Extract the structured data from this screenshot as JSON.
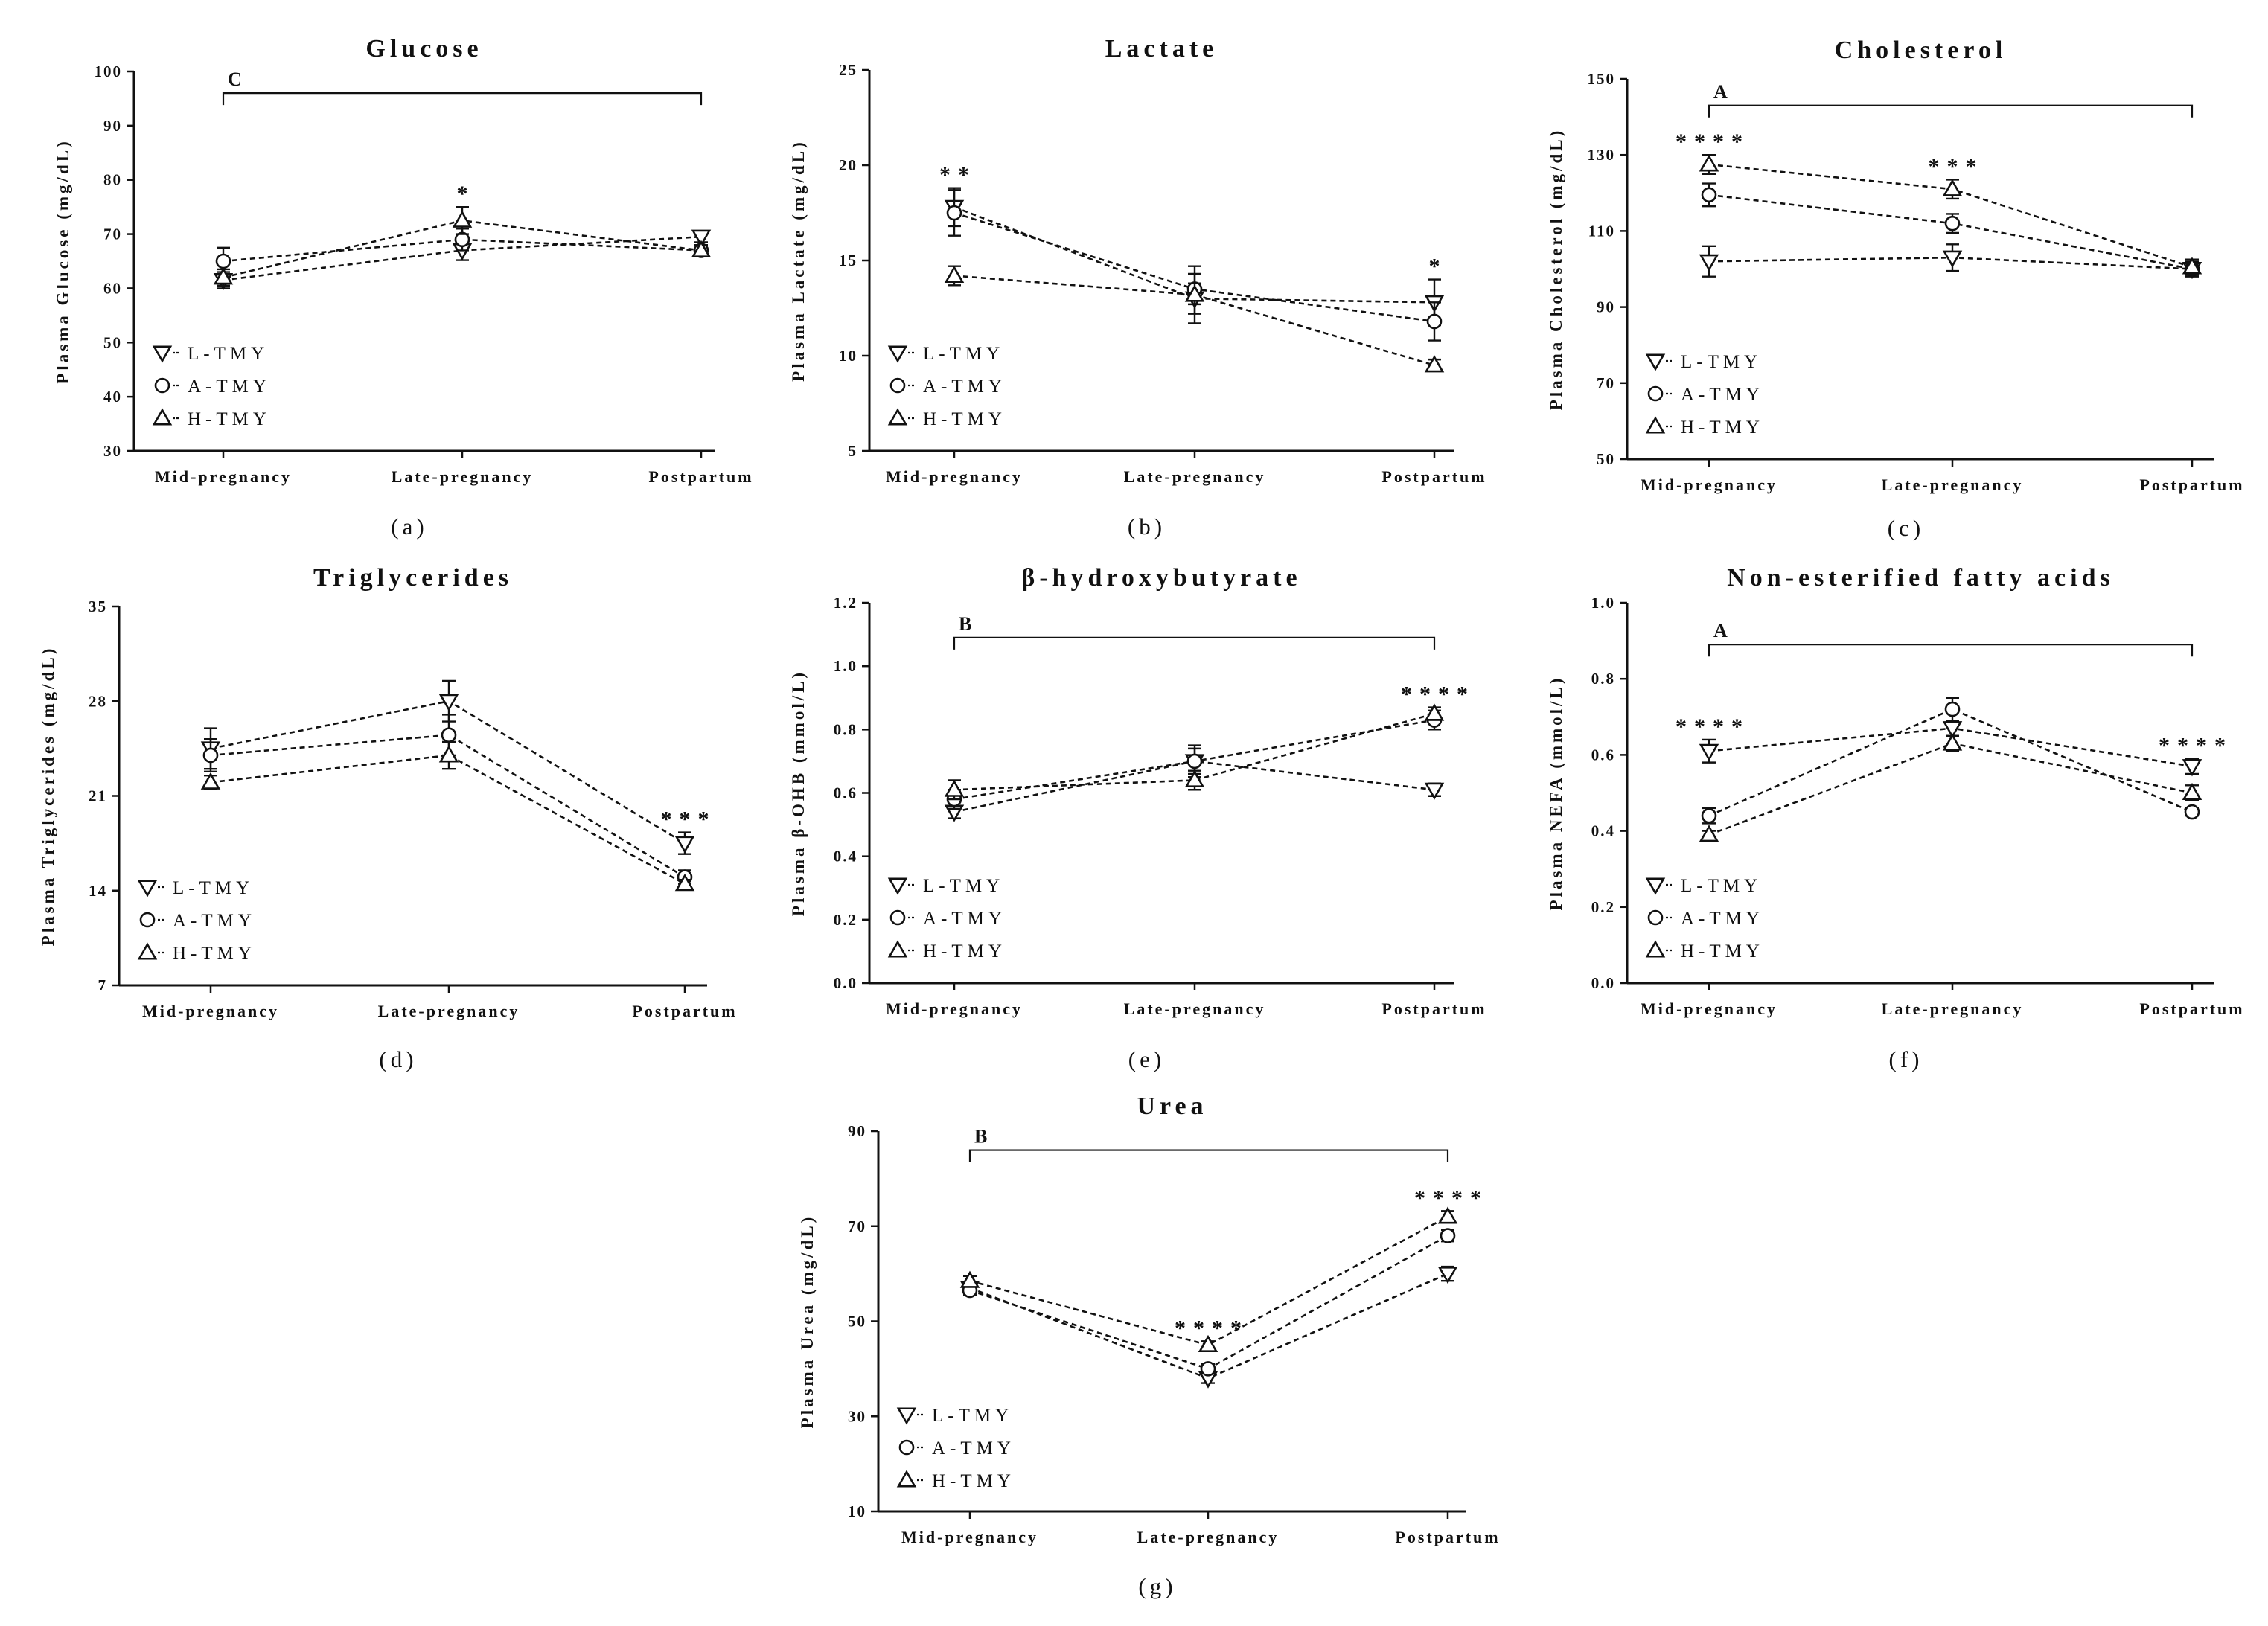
{
  "legend": [
    "L-TMY",
    "A-TMY",
    "H-TMY"
  ],
  "categories": [
    "Mid-pregnancy",
    "Late-pregnancy",
    "Postpartum"
  ],
  "chart_data": [
    {
      "type": "line",
      "panel": "(a)",
      "title": "Glucose",
      "ylabel": "Plasma Glucose (mg/dL)",
      "ylim": [
        30,
        100
      ],
      "yticks": [
        30,
        40,
        50,
        60,
        70,
        80,
        90,
        100
      ],
      "categories": [
        "Mid-pregnancy",
        "Late-pregnancy",
        "Postpartum"
      ],
      "series": [
        {
          "name": "L-TMY",
          "values": [
            61.5,
            67.0,
            69.5
          ],
          "err": [
            1.5,
            1.8,
            1.0
          ]
        },
        {
          "name": "A-TMY",
          "values": [
            65.0,
            69.0,
            67.0
          ],
          "err": [
            2.5,
            2.0,
            1.0
          ]
        },
        {
          "name": "H-TMY",
          "values": [
            62.0,
            72.5,
            67.0
          ],
          "err": [
            1.5,
            2.5,
            1.0
          ]
        }
      ],
      "significance": [
        {
          "category": "Late-pregnancy",
          "label": "*"
        }
      ],
      "bracket": {
        "label": "C",
        "from": "Mid-pregnancy",
        "to": "Postpartum",
        "y": 96
      }
    },
    {
      "type": "line",
      "panel": "(b)",
      "title": "Lactate",
      "ylabel": "Plasma Lactate (mg/dL)",
      "ylim": [
        5,
        25
      ],
      "yticks": [
        5,
        10,
        15,
        20,
        25
      ],
      "categories": [
        "Mid-pregnancy",
        "Late-pregnancy",
        "Postpartum"
      ],
      "series": [
        {
          "name": "L-TMY",
          "values": [
            17.8,
            13.0,
            12.8
          ],
          "err": [
            1.0,
            0.8,
            1.2
          ]
        },
        {
          "name": "A-TMY",
          "values": [
            17.5,
            13.5,
            11.8
          ],
          "err": [
            1.2,
            0.8,
            1.0
          ]
        },
        {
          "name": "H-TMY",
          "values": [
            14.2,
            13.2,
            9.5
          ],
          "err": [
            0.5,
            1.5,
            0.3
          ]
        }
      ],
      "significance": [
        {
          "category": "Mid-pregnancy",
          "label": "**"
        },
        {
          "category": "Postpartum",
          "label": "*"
        }
      ]
    },
    {
      "type": "line",
      "panel": "(c)",
      "title": "Cholesterol",
      "ylabel": "Plasma Cholesterol (mg/dL)",
      "ylim": [
        50,
        150
      ],
      "yticks": [
        50,
        70,
        90,
        110,
        130,
        150
      ],
      "categories": [
        "Mid-pregnancy",
        "Late-pregnancy",
        "Postpartum"
      ],
      "series": [
        {
          "name": "L-TMY",
          "values": [
            102.0,
            103.0,
            100.0
          ],
          "err": [
            4.0,
            3.5,
            2.0
          ]
        },
        {
          "name": "A-TMY",
          "values": [
            119.5,
            112.0,
            100.0
          ],
          "err": [
            3.0,
            2.5,
            1.5
          ]
        },
        {
          "name": "H-TMY",
          "values": [
            127.5,
            121.0,
            100.5
          ],
          "err": [
            2.5,
            2.5,
            2.0
          ]
        }
      ],
      "significance": [
        {
          "category": "Mid-pregnancy",
          "label": "****"
        },
        {
          "category": "Late-pregnancy",
          "label": "***"
        }
      ],
      "bracket": {
        "label": "A",
        "from": "Mid-pregnancy",
        "to": "Postpartum",
        "y": 143
      }
    },
    {
      "type": "line",
      "panel": "(d)",
      "title": "Triglycerides",
      "ylabel": "Plasma Triglycerides (mg/dL)",
      "ylim": [
        7,
        35
      ],
      "yticks": [
        7,
        14,
        21,
        28,
        35
      ],
      "categories": [
        "Mid-pregnancy",
        "Late-pregnancy",
        "Postpartum"
      ],
      "series": [
        {
          "name": "L-TMY",
          "values": [
            24.5,
            28.0,
            17.5
          ],
          "err": [
            1.5,
            1.5,
            0.8
          ]
        },
        {
          "name": "A-TMY",
          "values": [
            24.0,
            25.5,
            15.0
          ],
          "err": [
            1.2,
            1.5,
            0.5
          ]
        },
        {
          "name": "H-TMY",
          "values": [
            22.0,
            24.0,
            14.5
          ],
          "err": [
            0.5,
            1.0,
            0.3
          ]
        }
      ],
      "significance": [
        {
          "category": "Postpartum",
          "label": "***"
        }
      ]
    },
    {
      "type": "line",
      "panel": "(e)",
      "title": "β-hydroxybutyrate",
      "ylabel": "Plasma β-OHB (mmol/L)",
      "ylim": [
        0.0,
        1.2
      ],
      "yticks": [
        0.0,
        0.2,
        0.4,
        0.6,
        0.8,
        1.0,
        1.2
      ],
      "categories": [
        "Mid-pregnancy",
        "Late-pregnancy",
        "Postpartum"
      ],
      "series": [
        {
          "name": "L-TMY",
          "values": [
            0.54,
            0.7,
            0.61
          ],
          "err": [
            0.02,
            0.04,
            0.02
          ]
        },
        {
          "name": "A-TMY",
          "values": [
            0.58,
            0.7,
            0.83
          ],
          "err": [
            0.03,
            0.05,
            0.03
          ]
        },
        {
          "name": "H-TMY",
          "values": [
            0.61,
            0.64,
            0.85
          ],
          "err": [
            0.03,
            0.03,
            0.02
          ]
        }
      ],
      "significance": [
        {
          "category": "Postpartum",
          "label": "****"
        }
      ],
      "bracket": {
        "label": "B",
        "from": "Mid-pregnancy",
        "to": "Postpartum",
        "y": 1.09
      }
    },
    {
      "type": "line",
      "panel": "(f)",
      "title": "Non-esterified fatty acids",
      "ylabel": "Plasma NEFA (mmol/L)",
      "ylim": [
        0.0,
        1.0
      ],
      "yticks": [
        0.0,
        0.2,
        0.4,
        0.6,
        0.8,
        1.0
      ],
      "categories": [
        "Mid-pregnancy",
        "Late-pregnancy",
        "Postpartum"
      ],
      "series": [
        {
          "name": "L-TMY",
          "values": [
            0.61,
            0.67,
            0.57
          ],
          "err": [
            0.03,
            0.02,
            0.02
          ]
        },
        {
          "name": "A-TMY",
          "values": [
            0.44,
            0.72,
            0.45
          ],
          "err": [
            0.02,
            0.03,
            0.01
          ]
        },
        {
          "name": "H-TMY",
          "values": [
            0.39,
            0.63,
            0.5
          ],
          "err": [
            0.01,
            0.02,
            0.02
          ]
        }
      ],
      "significance": [
        {
          "category": "Mid-pregnancy",
          "label": "****"
        },
        {
          "category": "Postpartum",
          "label": "****"
        }
      ],
      "bracket": {
        "label": "A",
        "from": "Mid-pregnancy",
        "to": "Postpartum",
        "y": 0.89
      }
    },
    {
      "type": "line",
      "panel": "(g)",
      "title": "Urea",
      "ylabel": "Plasma Urea (mg/dL)",
      "ylim": [
        10,
        90
      ],
      "yticks": [
        10,
        30,
        50,
        70,
        90
      ],
      "categories": [
        "Mid-pregnancy",
        "Late-pregnancy",
        "Postpartum"
      ],
      "series": [
        {
          "name": "L-TMY",
          "values": [
            57.0,
            38.0,
            60.0
          ],
          "err": [
            1.0,
            1.0,
            1.5
          ]
        },
        {
          "name": "A-TMY",
          "values": [
            56.5,
            40.0,
            68.0
          ],
          "err": [
            1.0,
            1.0,
            1.2
          ]
        },
        {
          "name": "H-TMY",
          "values": [
            58.5,
            45.0,
            72.0
          ],
          "err": [
            1.0,
            0.8,
            1.2
          ]
        }
      ],
      "significance": [
        {
          "category": "Late-pregnancy",
          "label": "****"
        },
        {
          "category": "Postpartum",
          "label": "****"
        }
      ],
      "bracket": {
        "label": "B",
        "from": "Mid-pregnancy",
        "to": "Postpartum",
        "y": 86
      }
    }
  ]
}
